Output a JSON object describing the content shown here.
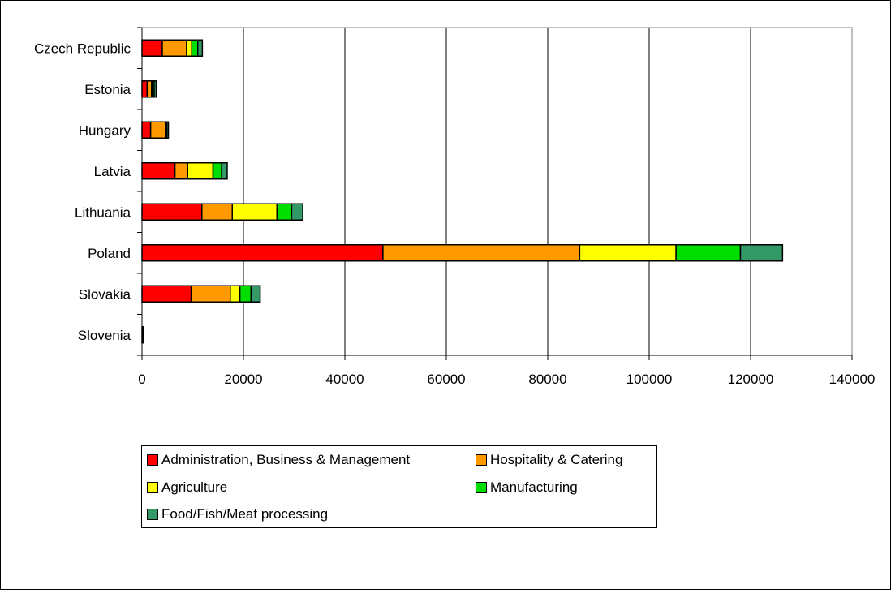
{
  "chart_data": {
    "type": "bar",
    "orientation": "horizontal",
    "stacked": true,
    "categories": [
      "Czech Republic",
      "Estonia",
      "Hungary",
      "Latvia",
      "Lithuania",
      "Poland",
      "Slovakia",
      "Slovenia"
    ],
    "series": [
      {
        "name": "Administration, Business & Management",
        "color": "#ff0000",
        "values": [
          4000,
          1000,
          1700,
          6500,
          11800,
          47500,
          9700,
          100
        ]
      },
      {
        "name": "Hospitality & Catering",
        "color": "#ff9900",
        "values": [
          4800,
          900,
          2900,
          2500,
          6000,
          38800,
          7700,
          50
        ]
      },
      {
        "name": "Agriculture",
        "color": "#ffff00",
        "values": [
          1000,
          200,
          100,
          5000,
          8800,
          19000,
          1900,
          20
        ]
      },
      {
        "name": "Manufacturing",
        "color": "#00dd00",
        "values": [
          1200,
          300,
          200,
          1700,
          2900,
          12700,
          2200,
          20
        ]
      },
      {
        "name": "Food/Fish/Meat processing",
        "color": "#339966",
        "values": [
          900,
          400,
          300,
          1100,
          2200,
          8300,
          1800,
          20
        ]
      }
    ],
    "x_ticks": [
      0,
      20000,
      40000,
      60000,
      80000,
      100000,
      120000,
      140000
    ],
    "xlim": [
      0,
      140000
    ],
    "grid": "vertical",
    "legend_position": "bottom",
    "title": "",
    "xlabel": "",
    "ylabel": ""
  }
}
